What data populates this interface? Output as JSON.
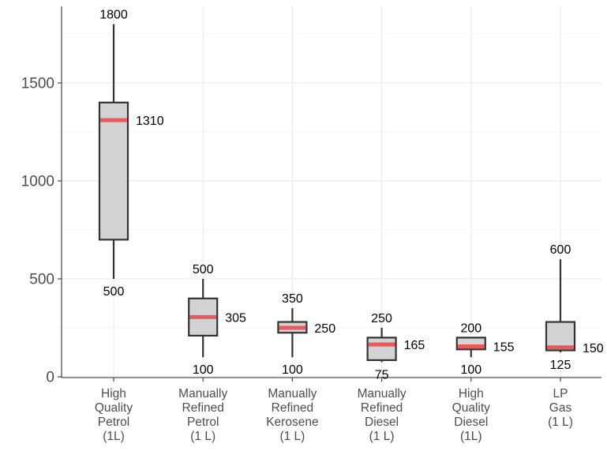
{
  "chart_data": {
    "type": "boxplot",
    "title": "",
    "xlabel": "",
    "ylabel": "",
    "ylim": [
      0,
      1850
    ],
    "yticks": [
      0,
      500,
      1000,
      1500
    ],
    "ytick_labels": [
      "0",
      "500",
      "1000",
      "1500"
    ],
    "grid": true,
    "categories": [
      [
        "High",
        "Quality",
        "Petrol",
        "(1L)"
      ],
      [
        "Manually",
        "Refined",
        "Petrol",
        "(1 L)"
      ],
      [
        "Manually",
        "Refined",
        "Kerosene",
        "(1 L)"
      ],
      [
        "Manually",
        "Refined",
        "Diesel",
        "(1 L)"
      ],
      [
        "High",
        "Quality",
        "Diesel",
        "(1L)"
      ],
      [
        "LP",
        "Gas",
        "(1 L)"
      ]
    ],
    "boxes": [
      {
        "min": 500,
        "q1": 700,
        "median": 1310,
        "q3": 1400,
        "max": 1800,
        "labels": {
          "max": "1800",
          "median": "1310",
          "min": "500"
        }
      },
      {
        "min": 100,
        "q1": 210,
        "median": 305,
        "q3": 400,
        "max": 500,
        "labels": {
          "max": "500",
          "median": "305",
          "min": "100"
        }
      },
      {
        "min": 100,
        "q1": 225,
        "median": 250,
        "q3": 280,
        "max": 350,
        "labels": {
          "max": "350",
          "median": "250",
          "min": "100"
        }
      },
      {
        "min": 75,
        "q1": 85,
        "median": 165,
        "q3": 200,
        "max": 250,
        "labels": {
          "max": "250",
          "median": "165",
          "min": "75"
        }
      },
      {
        "min": 100,
        "q1": 140,
        "median": 155,
        "q3": 200,
        "max": 200,
        "labels": {
          "max": "200",
          "median": "155",
          "min": "100"
        }
      },
      {
        "min": 125,
        "q1": 135,
        "median": 150,
        "q3": 280,
        "max": 600,
        "labels": {
          "max": "600",
          "median": "150",
          "min": "125"
        }
      }
    ],
    "colors": {
      "box_fill": "#d3d3d5",
      "median": "#e8595b",
      "outline": "#333333",
      "grid": "#ebebeb"
    }
  }
}
